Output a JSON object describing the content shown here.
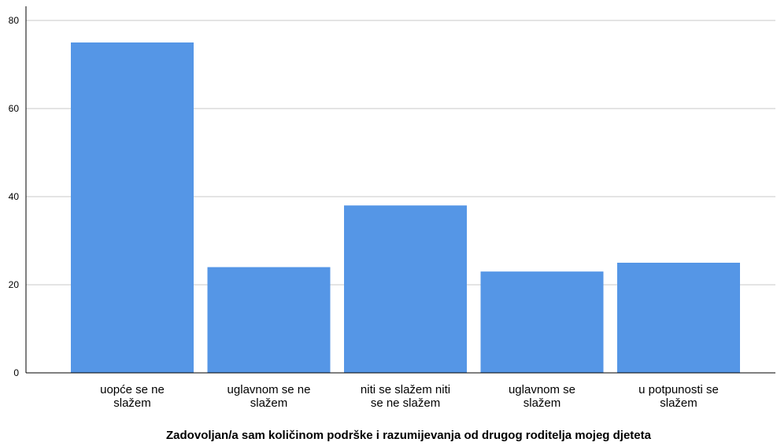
{
  "chart_data": {
    "type": "bar",
    "categories": [
      [
        "uopće se ne",
        "slažem"
      ],
      [
        "uglavnom se ne",
        "slažem"
      ],
      [
        "niti se slažem niti",
        "se ne slažem"
      ],
      [
        "uglavnom se",
        "slažem"
      ],
      [
        "u potpunosti se",
        "slažem"
      ]
    ],
    "values": [
      75,
      24,
      38,
      23,
      25
    ],
    "title": "",
    "xlabel": "Zadovoljan/a sam količinom podrške i razumijevanja od drugog roditelja mojeg djeteta",
    "ylabel": "",
    "ylim": [
      0,
      80
    ],
    "yticks": [
      0,
      20,
      40,
      60,
      80
    ],
    "grid": true,
    "colors": {
      "bar": "#5596e6",
      "grid": "#c8c8c8",
      "axis": "#000000"
    }
  }
}
